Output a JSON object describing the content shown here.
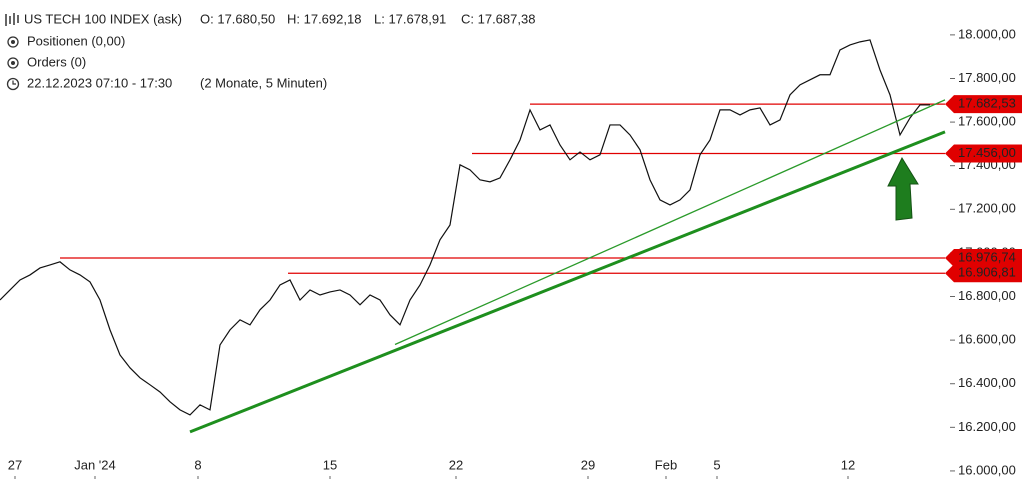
{
  "header": {
    "title": "US TECH 100 INDEX (ask)",
    "open": "O: 17.680,50",
    "high": "H: 17.692,18",
    "low": "L: 17.678,91",
    "close": "C: 17.687,38",
    "positions": "Positionen (0,00)",
    "orders": "Orders (0)",
    "range": "22.12.2023 07:10 - 17:30",
    "interval": "(2 Monate, 5 Minuten)"
  },
  "chart_data": {
    "type": "line",
    "series": [
      {
        "name": "US TECH 100 INDEX",
        "color": "#111111",
        "values": [
          16784,
          16830,
          16876,
          16899,
          16931,
          16945,
          16959,
          16922,
          16899,
          16867,
          16784,
          16647,
          16532,
          16473,
          16427,
          16395,
          16362,
          16317,
          16280,
          16257,
          16303,
          16280,
          16578,
          16647,
          16693,
          16670,
          16739,
          16784,
          16853,
          16876,
          16784,
          16830,
          16807,
          16821,
          16830,
          16807,
          16762,
          16807,
          16784,
          16716,
          16670,
          16784,
          16853,
          16945,
          17060,
          17128,
          17404,
          17381,
          17335,
          17326,
          17344,
          17427,
          17518,
          17656,
          17564,
          17587,
          17495,
          17427,
          17463,
          17427,
          17450,
          17587,
          17587,
          17541,
          17473,
          17335,
          17243,
          17220,
          17243,
          17289,
          17450,
          17518,
          17656,
          17656,
          17633,
          17656,
          17665,
          17587,
          17610,
          17725,
          17771,
          17794,
          17817,
          17817,
          17931,
          17954,
          17968,
          17977,
          17839,
          17725,
          17541,
          17619,
          17679,
          17679
        ]
      }
    ],
    "xticks": [
      {
        "value": 1.5,
        "label": "27"
      },
      {
        "value": 9.5,
        "label": "Jan '24"
      },
      {
        "value": 19.8,
        "label": "8"
      },
      {
        "value": 33,
        "label": "15"
      },
      {
        "value": 45.6,
        "label": "22"
      },
      {
        "value": 58.8,
        "label": "29"
      },
      {
        "value": 66.6,
        "label": "Feb"
      },
      {
        "value": 71.7,
        "label": "5"
      },
      {
        "value": 84.8,
        "label": "12"
      }
    ],
    "ylim": [
      15963,
      18160
    ],
    "yticks": [
      {
        "value": 16000,
        "label": "16.000,00"
      },
      {
        "value": 16200,
        "label": "16.200,00"
      },
      {
        "value": 16400,
        "label": "16.400,00"
      },
      {
        "value": 16600,
        "label": "16.600,00"
      },
      {
        "value": 16800,
        "label": "16.800,00"
      },
      {
        "value": 17000,
        "label": "17.000,00"
      },
      {
        "value": 17200,
        "label": "17.200,00"
      },
      {
        "value": 17400,
        "label": "17.400,00"
      },
      {
        "value": 17600,
        "label": "17.600,00"
      },
      {
        "value": 17800,
        "label": "17.800,00"
      },
      {
        "value": 18000,
        "label": "18.000,00"
      }
    ],
    "levels": [
      {
        "value": 17682.53,
        "label": "17.682,53",
        "color": "#e00000"
      },
      {
        "value": 17456,
        "label": "17.456,00",
        "color": "#e00000"
      },
      {
        "value": 16976.74,
        "label": "16.976,74",
        "color": "#e00000"
      },
      {
        "value": 16906.81,
        "label": "16.906,81",
        "color": "#e00000"
      }
    ],
    "trendlines": [
      {
        "x": [
          19,
          94.5
        ],
        "values": [
          16179,
          17555
        ],
        "color": "#1e8f1e"
      },
      {
        "x": [
          39.5,
          94.5
        ],
        "values": [
          16580,
          17702
        ],
        "color": "#2a9a2a"
      }
    ]
  }
}
